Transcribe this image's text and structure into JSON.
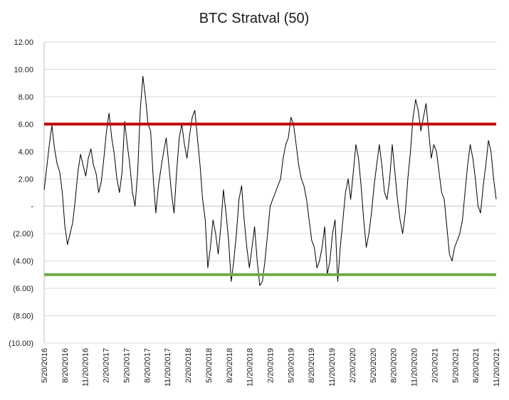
{
  "chart_data": {
    "type": "line",
    "title": "BTC Stratval (50)",
    "xlabel": "",
    "ylabel": "",
    "ylim": [
      -10,
      12
    ],
    "ytick_values": [
      12,
      10,
      8,
      6,
      4,
      2,
      0,
      -2,
      -4,
      -6,
      -8,
      -10
    ],
    "ytick_labels": [
      "12.00",
      "10.00",
      "8.00",
      "6.00",
      "4.00",
      "2.00",
      "-",
      "(2.00)",
      "(4.00)",
      "(6.00)",
      "(8.00)",
      "(10.00)"
    ],
    "xtick_labels": [
      "5/20/2016",
      "8/20/2016",
      "11/20/2016",
      "2/20/2017",
      "5/20/2017",
      "8/20/2017",
      "11/20/2017",
      "2/20/2018",
      "5/20/2018",
      "8/20/2018",
      "11/20/2018",
      "2/20/2019",
      "5/20/2019",
      "8/20/2019",
      "11/20/2019",
      "2/20/2020",
      "5/20/2020",
      "8/20/2020",
      "11/20/2020",
      "2/20/2021",
      "5/20/2021",
      "8/20/2021",
      "11/20/2021"
    ],
    "grid": true,
    "reference_lines": [
      {
        "y": 6,
        "color": "#c00000"
      },
      {
        "y": -5,
        "color": "#70ad47"
      }
    ],
    "series": [
      {
        "color": "#000000",
        "values": [
          1.2,
          2.8,
          4.5,
          5.9,
          4.2,
          3.1,
          2.5,
          1.0,
          -1.5,
          -2.8,
          -2.0,
          -1.2,
          0.5,
          2.5,
          3.8,
          3.0,
          2.2,
          3.5,
          4.2,
          3.0,
          2.4,
          1.0,
          1.8,
          3.5,
          5.5,
          6.8,
          5.0,
          3.8,
          2.0,
          1.0,
          2.5,
          6.2,
          4.5,
          3.0,
          1.0,
          0.0,
          2.5,
          7.0,
          9.5,
          8.0,
          6.0,
          5.5,
          2.0,
          -0.5,
          1.5,
          2.8,
          4.0,
          5.0,
          3.0,
          1.0,
          -0.5,
          2.5,
          5.0,
          6.0,
          4.5,
          3.5,
          5.2,
          6.5,
          7.0,
          5.0,
          3.0,
          0.5,
          -1.0,
          -4.5,
          -3.0,
          -1.0,
          -2.0,
          -3.5,
          -1.5,
          1.2,
          -0.5,
          -2.5,
          -5.5,
          -4.0,
          -2.0,
          0.5,
          1.5,
          -1.0,
          -3.0,
          -4.5,
          -3.0,
          -1.5,
          -4.0,
          -5.8,
          -5.5,
          -4.0,
          -2.0,
          0.0,
          0.5,
          1.0,
          1.5,
          2.0,
          3.5,
          4.5,
          5.0,
          6.5,
          6.0,
          4.5,
          3.0,
          2.0,
          1.5,
          0.5,
          -1.0,
          -2.5,
          -3.0,
          -4.5,
          -4.0,
          -3.0,
          -1.5,
          -5.0,
          -4.0,
          -2.0,
          -1.0,
          -5.5,
          -3.0,
          -1.0,
          1.0,
          2.0,
          0.5,
          2.5,
          4.5,
          3.5,
          1.5,
          -1.0,
          -3.0,
          -2.0,
          -0.5,
          1.5,
          3.0,
          4.5,
          3.0,
          1.0,
          0.5,
          2.0,
          4.5,
          2.5,
          0.5,
          -1.0,
          -2.0,
          -0.5,
          2.0,
          4.0,
          6.5,
          7.8,
          7.0,
          5.5,
          6.5,
          7.5,
          5.5,
          3.5,
          4.5,
          4.0,
          2.5,
          1.0,
          0.5,
          -1.5,
          -3.5,
          -4.0,
          -3.0,
          -2.5,
          -2.0,
          -1.0,
          1.0,
          3.0,
          4.5,
          3.5,
          2.0,
          0.0,
          -0.5,
          1.5,
          3.0,
          4.8,
          4.0,
          2.0,
          0.5
        ]
      }
    ]
  }
}
